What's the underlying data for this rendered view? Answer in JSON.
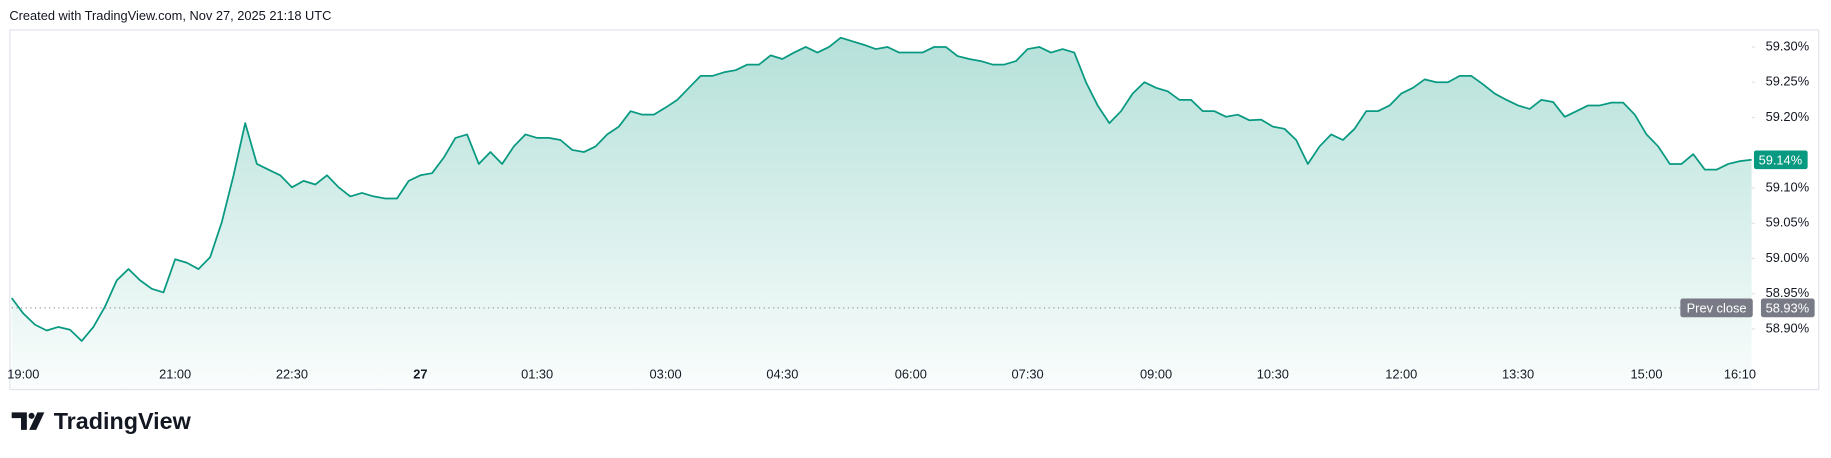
{
  "header": {
    "text": "Created with TradingView.com, Nov 27, 2025 21:18 UTC"
  },
  "chart_data": {
    "type": "line",
    "color": "#089981",
    "categories": [
      null,
      "19:00",
      null,
      null,
      null,
      null,
      null,
      null,
      null,
      null,
      null,
      null,
      null,
      null,
      "21:00",
      null,
      null,
      null,
      null,
      null,
      null,
      null,
      null,
      null,
      "22:30",
      null,
      null,
      null,
      null,
      null,
      null,
      null,
      null,
      null,
      null,
      "27",
      null,
      null,
      null,
      null,
      null,
      null,
      null,
      null,
      null,
      "01:30",
      null,
      null,
      null,
      null,
      null,
      null,
      null,
      null,
      null,
      null,
      "03:00",
      null,
      null,
      null,
      null,
      null,
      null,
      null,
      null,
      null,
      "04:30",
      null,
      null,
      null,
      null,
      null,
      null,
      null,
      null,
      null,
      null,
      "06:00",
      null,
      null,
      null,
      null,
      null,
      null,
      null,
      null,
      null,
      "07:30",
      null,
      null,
      null,
      null,
      null,
      null,
      null,
      null,
      null,
      null,
      "09:00",
      null,
      null,
      null,
      null,
      null,
      null,
      null,
      null,
      null,
      "10:30",
      null,
      null,
      null,
      null,
      null,
      null,
      null,
      null,
      null,
      null,
      "12:00",
      null,
      null,
      null,
      null,
      null,
      null,
      null,
      null,
      null,
      "13:30",
      null,
      null,
      null,
      null,
      null,
      null,
      null,
      null,
      null,
      null,
      "15:00",
      null,
      null,
      null,
      null,
      null,
      null,
      null,
      "16:10",
      null
    ],
    "values": [
      58.944,
      58.922,
      58.906,
      58.898,
      58.903,
      58.899,
      58.883,
      58.903,
      58.932,
      58.969,
      58.985,
      58.969,
      58.957,
      58.952,
      58.999,
      58.994,
      58.985,
      59.002,
      59.052,
      59.118,
      59.192,
      59.134,
      59.126,
      59.118,
      59.101,
      59.11,
      59.105,
      59.118,
      59.101,
      59.088,
      59.093,
      59.088,
      59.085,
      59.085,
      59.11,
      59.118,
      59.121,
      59.143,
      59.171,
      59.176,
      59.134,
      59.151,
      59.134,
      59.159,
      59.176,
      59.171,
      59.171,
      59.168,
      59.154,
      59.151,
      59.159,
      59.176,
      59.187,
      59.209,
      59.204,
      59.204,
      59.214,
      59.225,
      59.242,
      59.259,
      59.259,
      59.264,
      59.267,
      59.275,
      59.275,
      59.288,
      59.283,
      59.292,
      59.3,
      59.292,
      59.3,
      59.313,
      59.308,
      59.303,
      59.297,
      59.3,
      59.292,
      59.292,
      59.292,
      59.3,
      59.3,
      59.287,
      59.283,
      59.28,
      59.275,
      59.275,
      59.28,
      59.297,
      59.3,
      59.292,
      59.297,
      59.292,
      59.25,
      59.217,
      59.192,
      59.209,
      59.234,
      59.25,
      59.242,
      59.237,
      59.225,
      59.225,
      59.209,
      59.209,
      59.201,
      59.204,
      59.196,
      59.197,
      59.187,
      59.184,
      59.168,
      59.134,
      59.159,
      59.176,
      59.168,
      59.184,
      59.209,
      59.209,
      59.217,
      59.234,
      59.242,
      59.254,
      59.25,
      59.25,
      59.259,
      59.259,
      59.247,
      59.234,
      59.225,
      59.217,
      59.212,
      59.225,
      59.222,
      59.201,
      59.209,
      59.217,
      59.217,
      59.221,
      59.221,
      59.204,
      59.176,
      59.159,
      59.134,
      59.134,
      59.148,
      59.126,
      59.126,
      59.134,
      59.138,
      59.14
    ],
    "ylim": [
      58.815,
      59.325
    ],
    "yticks": [
      {
        "value": 58.9,
        "label": "58.90%"
      },
      {
        "value": 58.95,
        "label": "58.95%"
      },
      {
        "value": 59.0,
        "label": "59.00%"
      },
      {
        "value": 59.05,
        "label": "59.05%"
      },
      {
        "value": 59.1,
        "label": "59.10%"
      },
      {
        "value": 59.2,
        "label": "59.20%"
      },
      {
        "value": 59.25,
        "label": "59.25%"
      },
      {
        "value": 59.3,
        "label": "59.30%"
      }
    ],
    "current_price": {
      "value": 59.14,
      "label": "59.14%"
    },
    "prev_close": {
      "name": "Prev close",
      "value": 58.93,
      "label": "58.93%"
    }
  },
  "footer": {
    "brand": "TradingView"
  }
}
